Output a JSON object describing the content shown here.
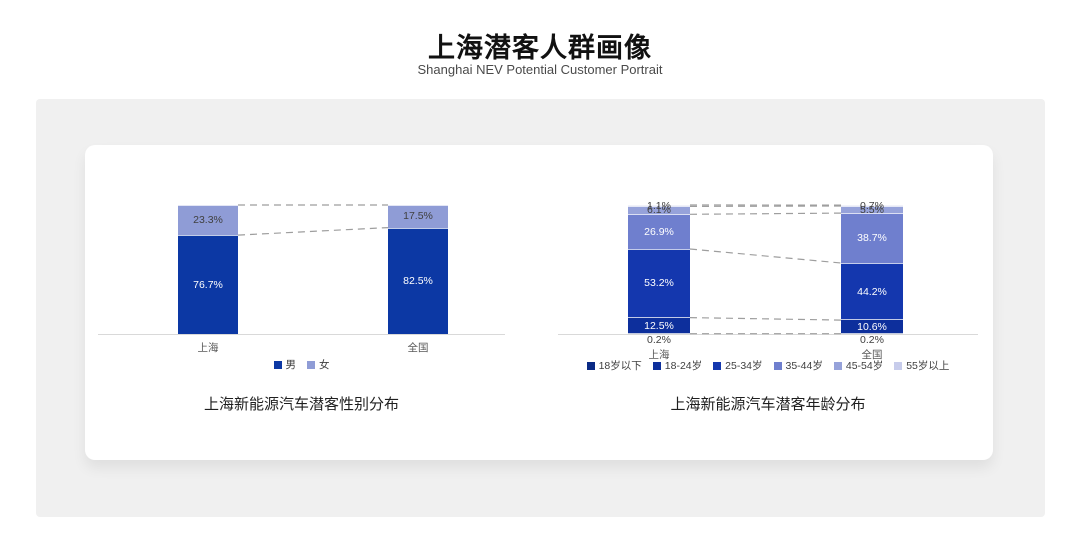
{
  "header": {
    "title": "上海潜客人群画像",
    "subtitle": "Shanghai NEV Potential Customer Portrait"
  },
  "colors": {
    "page_bg": "#ffffff",
    "panel_bg": "#f0f0f0",
    "card_bg": "#ffffff",
    "axis_line": "#d9d9d9",
    "connector_line": "#9e9e9e",
    "category_label": "#595959",
    "dark_label": "#404040",
    "light_label": "#ffffff"
  },
  "chart_data": [
    {
      "type": "bar",
      "subtype": "stacked-100-percent-column",
      "title": "上海新能源汽车潜客性别分布",
      "categories": [
        "上海",
        "全国"
      ],
      "series": [
        {
          "name": "男",
          "color": "#0c38a4",
          "label_color": "#ffffff",
          "values": [
            76.7,
            82.5
          ]
        },
        {
          "name": "女",
          "color": "#8f9cd6",
          "label_color": "#404040",
          "values": [
            23.3,
            17.5
          ]
        }
      ],
      "unit": "%",
      "ylim": [
        0,
        100
      ],
      "grid": false,
      "legend_position": "bottom",
      "connector_lines": "dashed between segment boundaries"
    },
    {
      "type": "bar",
      "subtype": "stacked-100-percent-column",
      "title": "上海新能源汽车潜客年龄分布",
      "categories": [
        "上海",
        "全国"
      ],
      "series": [
        {
          "name": "18岁以下",
          "color": "#0a2a85",
          "label_color": "#404040",
          "values": [
            0.2,
            0.2
          ]
        },
        {
          "name": "18-24岁",
          "color": "#0d2f9c",
          "label_color": "#ffffff",
          "values": [
            12.5,
            10.6
          ]
        },
        {
          "name": "25-34岁",
          "color": "#1437ae",
          "label_color": "#ffffff",
          "values": [
            53.2,
            44.2
          ]
        },
        {
          "name": "35-44岁",
          "color": "#6f7fce",
          "label_color": "#ffffff",
          "values": [
            26.9,
            38.7
          ]
        },
        {
          "name": "45-54岁",
          "color": "#96a2da",
          "label_color": "#404040",
          "values": [
            6.1,
            5.5
          ]
        },
        {
          "name": "55岁以上",
          "color": "#c7cceb",
          "label_color": "#404040",
          "values": [
            1.1,
            0.7
          ]
        }
      ],
      "unit": "%",
      "ylim": [
        0,
        100
      ],
      "grid": false,
      "legend_position": "bottom",
      "connector_lines": "dashed between segment boundaries"
    }
  ]
}
